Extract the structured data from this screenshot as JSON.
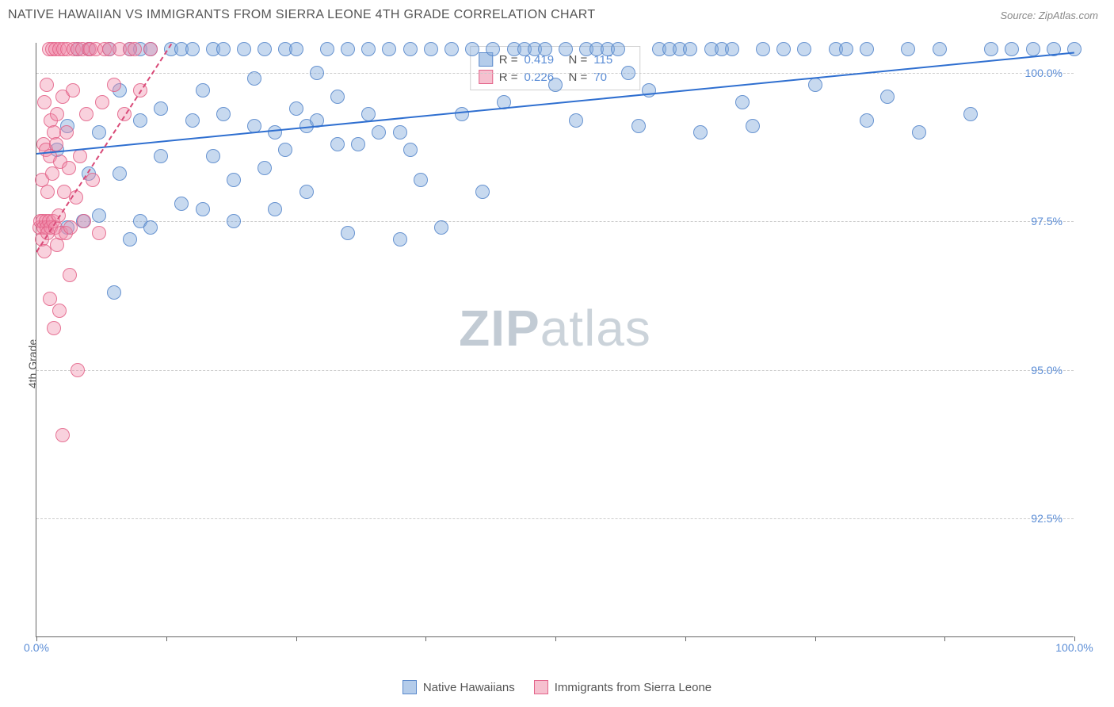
{
  "header": {
    "title": "NATIVE HAWAIIAN VS IMMIGRANTS FROM SIERRA LEONE 4TH GRADE CORRELATION CHART",
    "source": "Source: ZipAtlas.com"
  },
  "chart": {
    "type": "scatter",
    "ylabel": "4th Grade",
    "xlim": [
      0,
      100
    ],
    "ylim": [
      90.5,
      100.5
    ],
    "ytick_labels": [
      "92.5%",
      "95.0%",
      "97.5%",
      "100.0%"
    ],
    "ytick_values": [
      92.5,
      95.0,
      97.5,
      100.0
    ],
    "xtick_start_label": "0.0%",
    "xtick_end_label": "100.0%",
    "xtick_marks": [
      0,
      12.5,
      25,
      37.5,
      50,
      62.5,
      75,
      87.5,
      100
    ],
    "background_color": "#ffffff",
    "grid_color": "#cccccc",
    "axis_color": "#666666",
    "label_color_axis": "#5b8dd6",
    "label_color_text": "#555555",
    "marker_radius": 9,
    "series": [
      {
        "name": "Native Hawaiians",
        "color_fill": "rgba(130,170,220,0.45)",
        "color_stroke": "rgba(80,130,200,0.8)",
        "R": "0.419",
        "N": "115",
        "trend": {
          "x1": 0,
          "y1": 98.65,
          "x2": 100,
          "y2": 100.35,
          "color": "#2f6fd0",
          "dash": false
        },
        "points": [
          [
            2,
            98.7
          ],
          [
            3,
            97.4
          ],
          [
            3,
            99.1
          ],
          [
            4,
            100.4
          ],
          [
            4.5,
            97.5
          ],
          [
            5,
            98.3
          ],
          [
            5,
            100.4
          ],
          [
            6,
            99.0
          ],
          [
            6,
            97.6
          ],
          [
            7,
            100.4
          ],
          [
            7.5,
            96.3
          ],
          [
            8,
            98.3
          ],
          [
            8,
            99.7
          ],
          [
            9,
            100.4
          ],
          [
            9,
            97.2
          ],
          [
            10,
            99.2
          ],
          [
            10,
            97.5
          ],
          [
            10,
            100.4
          ],
          [
            11,
            100.4
          ],
          [
            11,
            97.4
          ],
          [
            12,
            99.4
          ],
          [
            12,
            98.6
          ],
          [
            13,
            100.4
          ],
          [
            14,
            97.8
          ],
          [
            14,
            100.4
          ],
          [
            15,
            100.4
          ],
          [
            15,
            99.2
          ],
          [
            16,
            97.7
          ],
          [
            16,
            99.7
          ],
          [
            17,
            98.6
          ],
          [
            17,
            100.4
          ],
          [
            18,
            99.3
          ],
          [
            18,
            100.4
          ],
          [
            19,
            98.2
          ],
          [
            19,
            97.5
          ],
          [
            20,
            100.4
          ],
          [
            21,
            99.9
          ],
          [
            21,
            99.1
          ],
          [
            22,
            98.4
          ],
          [
            22,
            100.4
          ],
          [
            23,
            99.0
          ],
          [
            23,
            97.7
          ],
          [
            24,
            100.4
          ],
          [
            24,
            98.7
          ],
          [
            25,
            99.4
          ],
          [
            25,
            100.4
          ],
          [
            26,
            99.1
          ],
          [
            26,
            98.0
          ],
          [
            27,
            100.0
          ],
          [
            27,
            99.2
          ],
          [
            28,
            100.4
          ],
          [
            29,
            98.8
          ],
          [
            29,
            99.6
          ],
          [
            30,
            97.3
          ],
          [
            30,
            100.4
          ],
          [
            31,
            98.8
          ],
          [
            32,
            100.4
          ],
          [
            32,
            99.3
          ],
          [
            33,
            99.0
          ],
          [
            34,
            100.4
          ],
          [
            35,
            99.0
          ],
          [
            35,
            97.2
          ],
          [
            36,
            100.4
          ],
          [
            36,
            98.7
          ],
          [
            37,
            98.2
          ],
          [
            38,
            100.4
          ],
          [
            39,
            97.4
          ],
          [
            40,
            100.4
          ],
          [
            41,
            99.3
          ],
          [
            42,
            100.4
          ],
          [
            43,
            98.0
          ],
          [
            44,
            100.4
          ],
          [
            45,
            99.5
          ],
          [
            46,
            100.4
          ],
          [
            47,
            100.4
          ],
          [
            48,
            100.4
          ],
          [
            49,
            100.4
          ],
          [
            50,
            99.8
          ],
          [
            51,
            100.4
          ],
          [
            52,
            99.2
          ],
          [
            53,
            100.4
          ],
          [
            54,
            100.4
          ],
          [
            55,
            100.4
          ],
          [
            56,
            100.4
          ],
          [
            57,
            100.0
          ],
          [
            58,
            99.1
          ],
          [
            59,
            99.7
          ],
          [
            60,
            100.4
          ],
          [
            61,
            100.4
          ],
          [
            62,
            100.4
          ],
          [
            63,
            100.4
          ],
          [
            64,
            99.0
          ],
          [
            65,
            100.4
          ],
          [
            66,
            100.4
          ],
          [
            67,
            100.4
          ],
          [
            68,
            99.5
          ],
          [
            69,
            99.1
          ],
          [
            70,
            100.4
          ],
          [
            72,
            100.4
          ],
          [
            74,
            100.4
          ],
          [
            75,
            99.8
          ],
          [
            77,
            100.4
          ],
          [
            78,
            100.4
          ],
          [
            80,
            100.4
          ],
          [
            80,
            99.2
          ],
          [
            82,
            99.6
          ],
          [
            84,
            100.4
          ],
          [
            85,
            99.0
          ],
          [
            87,
            100.4
          ],
          [
            90,
            99.3
          ],
          [
            92,
            100.4
          ],
          [
            94,
            100.4
          ],
          [
            96,
            100.4
          ],
          [
            98,
            100.4
          ],
          [
            100,
            100.4
          ]
        ]
      },
      {
        "name": "Immigrants from Sierra Leone",
        "color_fill": "rgba(240,140,170,0.4)",
        "color_stroke": "rgba(225,90,130,0.8)",
        "R": "0.226",
        "N": "70",
        "trend": {
          "x1": 0,
          "y1": 97.0,
          "x2": 13,
          "y2": 100.5,
          "color": "#d94a78",
          "dash": true
        },
        "points": [
          [
            0.3,
            97.4
          ],
          [
            0.4,
            97.5
          ],
          [
            0.5,
            97.2
          ],
          [
            0.5,
            98.2
          ],
          [
            0.6,
            97.5
          ],
          [
            0.7,
            97.4
          ],
          [
            0.7,
            98.8
          ],
          [
            0.8,
            97.0
          ],
          [
            0.8,
            99.5
          ],
          [
            0.9,
            97.5
          ],
          [
            0.9,
            98.7
          ],
          [
            1.0,
            97.4
          ],
          [
            1.0,
            99.8
          ],
          [
            1.1,
            97.3
          ],
          [
            1.1,
            98.0
          ],
          [
            1.2,
            100.4
          ],
          [
            1.2,
            97.5
          ],
          [
            1.3,
            98.6
          ],
          [
            1.3,
            96.2
          ],
          [
            1.4,
            99.2
          ],
          [
            1.4,
            97.4
          ],
          [
            1.5,
            100.4
          ],
          [
            1.5,
            98.3
          ],
          [
            1.6,
            97.5
          ],
          [
            1.7,
            99.0
          ],
          [
            1.7,
            95.7
          ],
          [
            1.8,
            97.4
          ],
          [
            1.8,
            100.4
          ],
          [
            1.9,
            98.8
          ],
          [
            2.0,
            97.1
          ],
          [
            2.0,
            99.3
          ],
          [
            2.1,
            97.6
          ],
          [
            2.2,
            96.0
          ],
          [
            2.2,
            100.4
          ],
          [
            2.3,
            98.5
          ],
          [
            2.4,
            97.3
          ],
          [
            2.5,
            99.6
          ],
          [
            2.5,
            93.9
          ],
          [
            2.6,
            100.4
          ],
          [
            2.7,
            98.0
          ],
          [
            2.8,
            97.3
          ],
          [
            2.9,
            99.0
          ],
          [
            3.0,
            100.4
          ],
          [
            3.1,
            98.4
          ],
          [
            3.2,
            96.6
          ],
          [
            3.3,
            97.4
          ],
          [
            3.5,
            99.7
          ],
          [
            3.6,
            100.4
          ],
          [
            3.8,
            97.9
          ],
          [
            4.0,
            100.4
          ],
          [
            4.0,
            95.0
          ],
          [
            4.2,
            98.6
          ],
          [
            4.4,
            100.4
          ],
          [
            4.6,
            97.5
          ],
          [
            4.8,
            99.3
          ],
          [
            5.0,
            100.4
          ],
          [
            5.2,
            100.4
          ],
          [
            5.4,
            98.2
          ],
          [
            5.7,
            100.4
          ],
          [
            6.0,
            97.3
          ],
          [
            6.3,
            99.5
          ],
          [
            6.6,
            100.4
          ],
          [
            7.0,
            100.4
          ],
          [
            7.5,
            99.8
          ],
          [
            8.0,
            100.4
          ],
          [
            8.5,
            99.3
          ],
          [
            9.0,
            100.4
          ],
          [
            9.5,
            100.4
          ],
          [
            10.0,
            99.7
          ],
          [
            11.0,
            100.4
          ]
        ]
      }
    ],
    "watermark": {
      "bold": "ZIP",
      "rest": "atlas"
    },
    "legend_bottom": [
      {
        "label": "Native Hawaiians",
        "swatch": "blue"
      },
      {
        "label": "Immigrants from Sierra Leone",
        "swatch": "pink"
      }
    ],
    "legend_top_labels": {
      "R": "R =",
      "N": "N ="
    }
  }
}
